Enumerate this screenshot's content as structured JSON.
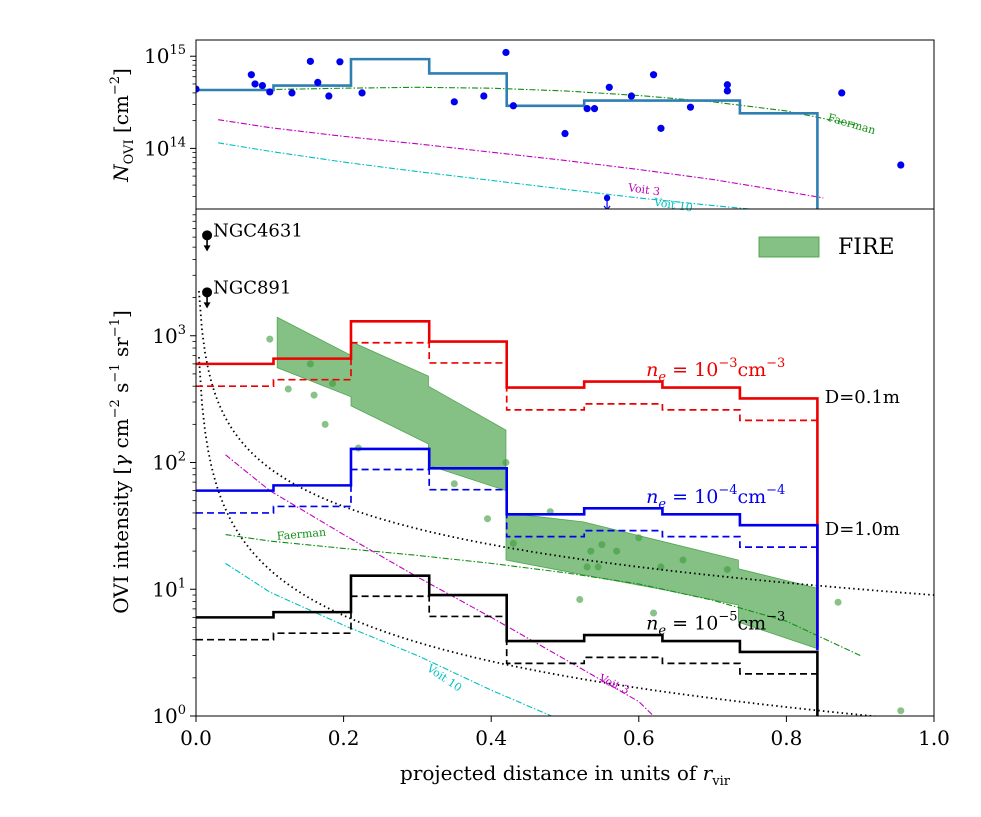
{
  "chart_data": [
    {
      "type": "line",
      "ylabel": "N_OVI [cm^-2]",
      "ylabel_main": "N",
      "ylabel_sub": "OVI",
      "ylabel_unit": " [cm",
      "ylabel_unit_sup": "−2",
      "ylabel_unit_end": "]",
      "yscale": "log",
      "ylim": [
        22000000000000.0,
        1500000000000000.0
      ],
      "xlim": [
        0.0,
        1.0
      ],
      "yticks": [
        {
          "value": 100000000000000.0,
          "base": "10",
          "exp": "14"
        },
        {
          "value": 1000000000000000.0,
          "base": "10",
          "exp": "15"
        }
      ],
      "histogram": {
        "name": "FIRE column",
        "color": "#2f7fb3",
        "edges": [
          0.0,
          0.105,
          0.21,
          0.316,
          0.421,
          0.526,
          0.632,
          0.737,
          0.842
        ],
        "values": [
          430000000000000.0,
          480000000000000.0,
          930000000000000.0,
          650000000000000.0,
          290000000000000.0,
          330000000000000.0,
          330000000000000.0,
          240000000000000.0
        ],
        "drop_to": 22000000000000.0
      },
      "points": {
        "color": "#0000ee",
        "x": [
          0.0,
          0.075,
          0.08,
          0.09,
          0.1,
          0.13,
          0.155,
          0.165,
          0.18,
          0.195,
          0.225,
          0.35,
          0.39,
          0.42,
          0.43,
          0.5,
          0.53,
          0.54,
          0.56,
          0.59,
          0.62,
          0.63,
          0.67,
          0.72,
          0.72,
          0.875,
          0.955
        ],
        "y": [
          440000000000000.0,
          630000000000000.0,
          500000000000000.0,
          480000000000000.0,
          410000000000000.0,
          400000000000000.0,
          880000000000000.0,
          520000000000000.0,
          370000000000000.0,
          870000000000000.0,
          400000000000000.0,
          320000000000000.0,
          370000000000000.0,
          1100000000000000.0,
          290000000000000.0,
          145000000000000.0,
          270000000000000.0,
          270000000000000.0,
          460000000000000.0,
          370000000000000.0,
          630000000000000.0,
          165000000000000.0,
          280000000000000.0,
          490000000000000.0,
          420000000000000.0,
          400000000000000.0,
          66000000000000.0
        ]
      },
      "upper_limit": {
        "x": 0.557,
        "y": 29000000000000.0,
        "color": "#0000ee"
      },
      "models": [
        {
          "name": "Faerman",
          "label": "Faerman",
          "color": "#138f13",
          "x": [
            0.0,
            0.1,
            0.2,
            0.3,
            0.4,
            0.5,
            0.6,
            0.7,
            0.8,
            0.9
          ],
          "y": [
            430000000000000.0,
            435000000000000.0,
            450000000000000.0,
            460000000000000.0,
            450000000000000.0,
            420000000000000.0,
            375000000000000.0,
            320000000000000.0,
            255000000000000.0,
            175000000000000.0
          ]
        },
        {
          "name": "Voit 3",
          "label": "Voit 3",
          "color": "#c000c0",
          "x": [
            0.03,
            0.1,
            0.2,
            0.3,
            0.4,
            0.5,
            0.6,
            0.7,
            0.8,
            0.85
          ],
          "y": [
            205000000000000.0,
            168000000000000.0,
            135000000000000.0,
            112000000000000.0,
            91000000000000.0,
            74000000000000.0,
            59000000000000.0,
            46000000000000.0,
            34000000000000.0,
            29000000000000.0
          ]
        },
        {
          "name": "Voit 10",
          "label": "Voit 10",
          "color": "#00bfbf",
          "x": [
            0.03,
            0.1,
            0.2,
            0.3,
            0.4,
            0.5,
            0.6,
            0.7,
            0.75
          ],
          "y": [
            115000000000000.0,
            93000000000000.0,
            71000000000000.0,
            56000000000000.0,
            45000000000000.0,
            36000000000000.0,
            29000000000000.0,
            24000000000000.0,
            22000000000000.0
          ]
        }
      ]
    },
    {
      "type": "line",
      "ylabel": "OVI intensity [γ cm^-2 s^-1 sr^-1]",
      "ylabel_pre": "OVI intensity [",
      "ylabel_gamma": "γ",
      "ylabel_cm": " cm",
      "ylabel_exp1": "−2",
      "ylabel_s": " s",
      "ylabel_exp2": "−1",
      "ylabel_sr": " sr",
      "ylabel_exp3": "−1",
      "ylabel_end": "]",
      "xlabel": "projected distance in units of r_vir",
      "xlabel_text": "projected distance in units of ",
      "xlabel_r": "r",
      "xlabel_sub": "vir",
      "yscale": "log",
      "ylim": [
        1.0,
        10000
      ],
      "xlim": [
        0.0,
        1.0
      ],
      "xticks": [
        "0.0",
        "0.2",
        "0.4",
        "0.6",
        "0.8",
        "1.0"
      ],
      "xtick_values": [
        0.0,
        0.2,
        0.4,
        0.6,
        0.8,
        1.0
      ],
      "yticks": [
        {
          "value": 1,
          "base": "10",
          "exp": "0"
        },
        {
          "value": 10,
          "base": "10",
          "exp": "1"
        },
        {
          "value": 100,
          "base": "10",
          "exp": "2"
        },
        {
          "value": 1000,
          "base": "10",
          "exp": "3"
        }
      ],
      "edges": [
        0.0,
        0.105,
        0.21,
        0.316,
        0.421,
        0.526,
        0.632,
        0.737,
        0.842
      ],
      "series": [
        {
          "name": "ne_1e-3",
          "color": "#ee0000",
          "solid": [
            600,
            660,
            1300,
            900,
            390,
            435,
            390,
            320
          ],
          "dashed": [
            400,
            450,
            880,
            610,
            260,
            290,
            260,
            215
          ],
          "drop_to": 3.5
        },
        {
          "name": "ne_1e-4",
          "color": "#0000ee",
          "solid": [
            60,
            66,
            128,
            90,
            39,
            43.5,
            39,
            32
          ],
          "dashed": [
            40,
            45,
            88,
            61,
            26,
            29,
            26,
            21.5
          ],
          "drop_to": 3.3
        },
        {
          "name": "ne_1e-5",
          "color": "#000000",
          "solid": [
            6.0,
            6.6,
            12.8,
            9.0,
            3.9,
            4.35,
            3.9,
            3.2
          ],
          "dashed": [
            4.0,
            4.5,
            8.8,
            6.1,
            2.6,
            2.9,
            2.6,
            2.15
          ],
          "drop_to": 1.0
        }
      ],
      "series_labels": [
        {
          "name": "ne_1e-3",
          "pre": "n",
          "sub": "e",
          "eq": " = 10",
          "exp": "−3",
          "unit": "cm",
          "unit_exp": "−3",
          "color": "#ee0000",
          "x": 0.61,
          "y": 480
        },
        {
          "name": "ne_1e-4",
          "pre": "n",
          "sub": "e",
          "eq": " = 10",
          "exp": "−4",
          "unit": "cm",
          "unit_exp": "−4",
          "color": "#0000ee",
          "x": 0.61,
          "y": 48
        },
        {
          "name": "ne_1e-5",
          "pre": "n",
          "sub": "e",
          "eq": " = 10",
          "exp": "−5",
          "unit": "cm",
          "unit_exp": "−3",
          "color": "#000000",
          "x": 0.61,
          "y": 4.8
        }
      ],
      "fire_band": {
        "label": "FIRE",
        "color": "#3a9a3a",
        "upper": [
          [
            0.11,
            1400
          ],
          [
            0.21,
            700
          ],
          [
            0.21,
            900
          ],
          [
            0.315,
            480
          ],
          [
            0.315,
            400
          ],
          [
            0.42,
            180
          ],
          [
            0.42,
            40
          ],
          [
            0.525,
            34
          ],
          [
            0.63,
            24
          ],
          [
            0.735,
            17
          ],
          [
            0.735,
            14.5
          ],
          [
            0.842,
            10.2
          ]
        ],
        "lower": [
          [
            0.842,
            3.4
          ],
          [
            0.735,
            5.5
          ],
          [
            0.735,
            7.5
          ],
          [
            0.63,
            10
          ],
          [
            0.525,
            13
          ],
          [
            0.42,
            17
          ],
          [
            0.42,
            60
          ],
          [
            0.315,
            95
          ],
          [
            0.315,
            140
          ],
          [
            0.21,
            280
          ],
          [
            0.21,
            330
          ],
          [
            0.11,
            560
          ]
        ]
      },
      "fire_points": {
        "color": "#3a9a3a",
        "x": [
          0.1,
          0.125,
          0.155,
          0.16,
          0.175,
          0.185,
          0.22,
          0.35,
          0.395,
          0.42,
          0.43,
          0.48,
          0.52,
          0.53,
          0.535,
          0.545,
          0.55,
          0.57,
          0.6,
          0.62,
          0.63,
          0.66,
          0.72,
          0.87,
          0.955
        ],
        "y": [
          940,
          380,
          600,
          340,
          200,
          420,
          130,
          68,
          36,
          100,
          23,
          41,
          8.3,
          15,
          20,
          15,
          22.5,
          20,
          25.5,
          6.5,
          15,
          17,
          14.3,
          7.9,
          1.1
        ]
      },
      "dotted_curves": [
        {
          "name": "D=0.1m",
          "label": "D=0.1m",
          "amplitude": 9.0,
          "exponent": 1
        },
        {
          "name": "D=1.0m",
          "label": "D=1.0m",
          "amplitude": 0.9,
          "exponent": 1.2
        }
      ],
      "models": [
        {
          "name": "Faerman",
          "label": "Faerman",
          "color": "#138f13",
          "x": [
            0.04,
            0.1,
            0.2,
            0.3,
            0.4,
            0.5,
            0.6,
            0.7,
            0.8,
            0.9
          ],
          "y": [
            27,
            24,
            21,
            18.5,
            16,
            13.5,
            11,
            8.2,
            5.6,
            3.0
          ]
        },
        {
          "name": "Voit 3",
          "label": "Voit 3",
          "color": "#c000c0",
          "x": [
            0.04,
            0.1,
            0.2,
            0.3,
            0.4,
            0.5,
            0.6,
            0.62
          ],
          "y": [
            115,
            60,
            27,
            12.5,
            6.0,
            2.8,
            1.3,
            1.0
          ]
        },
        {
          "name": "Voit 10",
          "label": "Voit 10",
          "color": "#00bfbf",
          "x": [
            0.04,
            0.1,
            0.2,
            0.3,
            0.4,
            0.5
          ],
          "y": [
            16,
            9.5,
            5.2,
            3.0,
            1.6,
            0.9
          ]
        }
      ],
      "galaxies": [
        {
          "name": "NGC4631",
          "label": "NGC4631",
          "x": 0.015,
          "y": 6200
        },
        {
          "name": "NGC891",
          "label": "NGC891",
          "x": 0.015,
          "y": 2200
        }
      ],
      "legend": {
        "label": "FIRE",
        "position": "top-right"
      }
    }
  ]
}
